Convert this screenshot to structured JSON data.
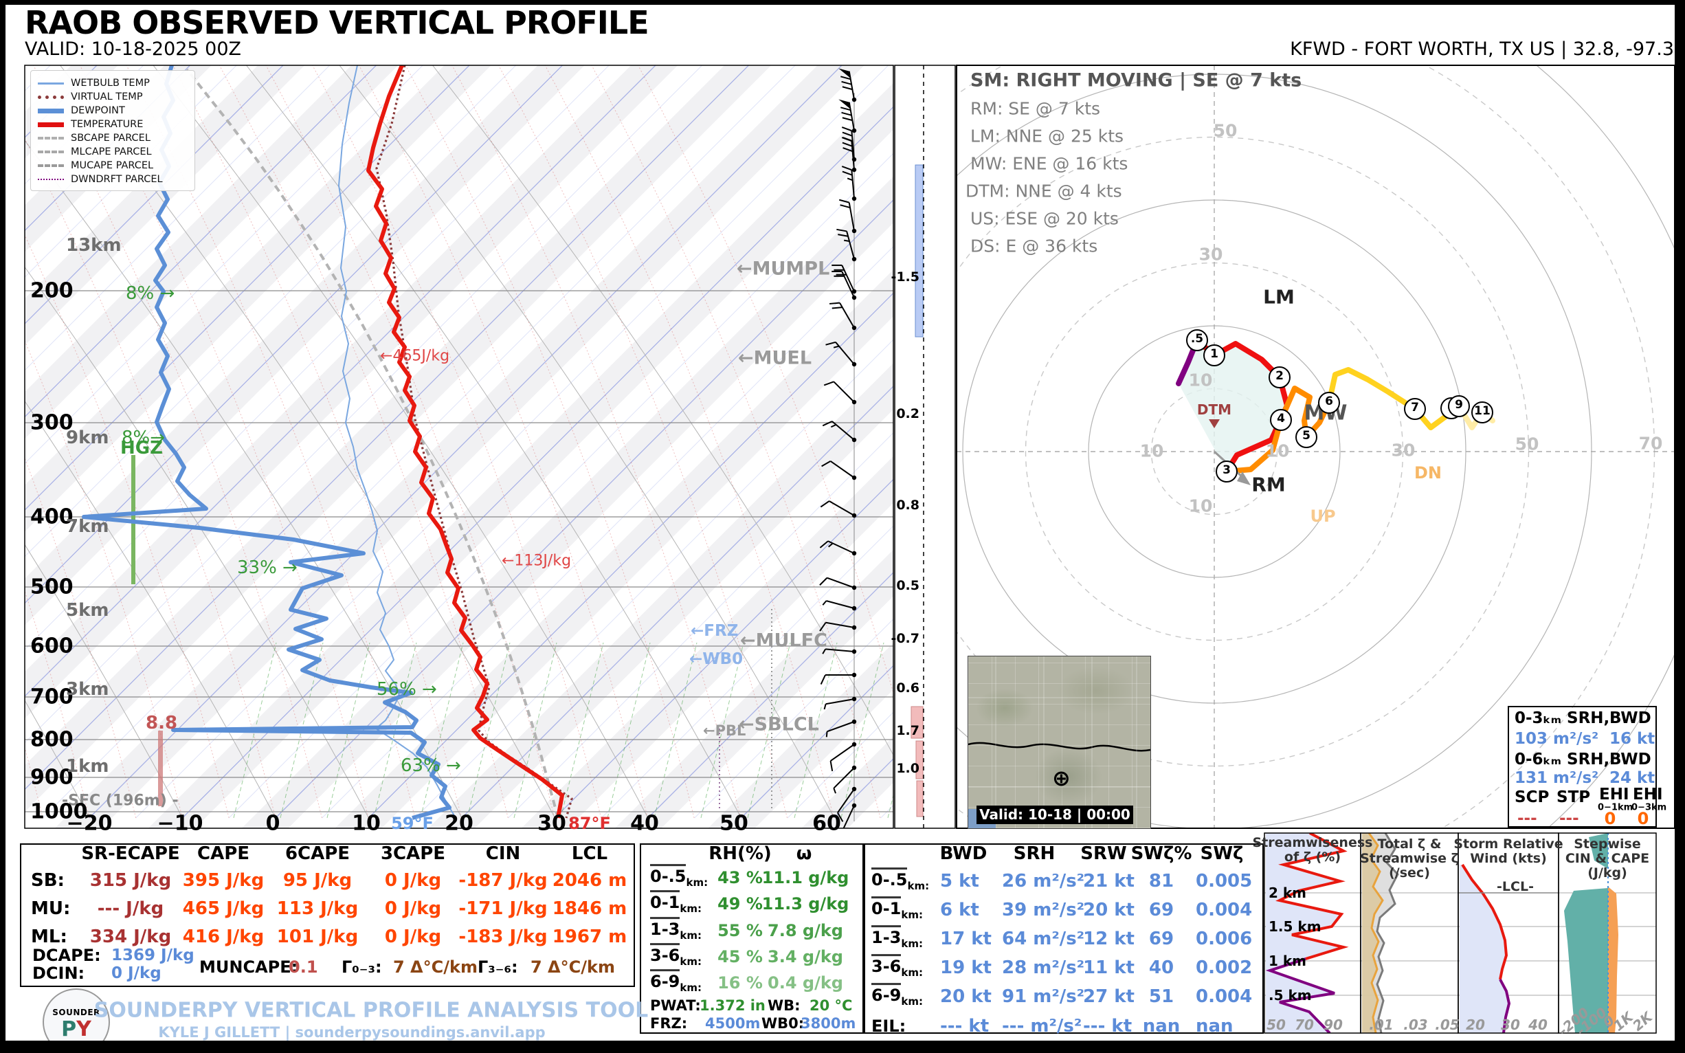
{
  "header": {
    "title": "RAOB OBSERVED VERTICAL PROFILE",
    "valid": "VALID: 10-18-2025 00Z",
    "station": "KFWD - FORT WORTH, TX US | 32.8, -97.3"
  },
  "legend": {
    "items": [
      "WETBULB TEMP",
      "VIRTUAL TEMP",
      "DEWPOINT",
      "TEMPERATURE",
      "SBCAPE PARCEL",
      "MLCAPE PARCEL",
      "MUCAPE PARCEL",
      "DWNDRFT PARCEL"
    ]
  },
  "skewt": {
    "pressure_ticks": [
      "200",
      "300",
      "400",
      "500",
      "600",
      "700",
      "800",
      "900",
      "1000"
    ],
    "km_labels": [
      "13km",
      "9km",
      "7km",
      "5km",
      "3km",
      "1km"
    ],
    "temp_ticks": [
      "−20",
      "−10",
      "0",
      "10",
      "20",
      "30",
      "40",
      "50",
      "60"
    ],
    "sfc_dew": "59°F",
    "sfc_temp": "87°F",
    "ann": {
      "rh200": "8% →",
      "rh300": "8%→",
      "hgz": "HGZ",
      "rh500": "33% →",
      "rh700": "56% →",
      "rh800": "63% →",
      "j465": "←465J/kg",
      "j113": "←113J/kg",
      "mumpl": "←MUMPL",
      "muel": "←MUEL",
      "mulfc": "←MULFC",
      "frz": "←FRZ",
      "wb0": "←WB0",
      "sblcl": "←SBLCL",
      "pbl": "←PBL",
      "hail": "8.8",
      "sfc": "-SFC (196m) -"
    }
  },
  "omega": {
    "values": [
      "-1.5",
      "0.2",
      "0.8",
      "0.5",
      "-0.7",
      "0.6",
      "1.7",
      "1.0"
    ]
  },
  "hodograph": {
    "sm_lines": [
      "SM: RIGHT MOVING | SE @ 7 kts",
      "RM: SE @ 7 kts",
      "LM: NNE @ 25 kts",
      "MW: ENE @ 16 kts",
      "DTM: NNE @ 4 kts",
      "US: ESE @ 20 kts",
      "DS: E @ 36 kts"
    ],
    "ring_ticks": [
      "10",
      "30",
      "50",
      "70"
    ],
    "markers": [
      ".5",
      "1",
      "2",
      "3",
      "4",
      "5",
      "6",
      "7",
      "8",
      "9",
      "11"
    ],
    "labels": {
      "lm": "LM",
      "mw": "MW",
      "rm": "RM",
      "up": "UP",
      "dn": "DN",
      "dtm": "DTM"
    },
    "inset": {
      "h1a": "0-3ₖₘ SRH,",
      "h1b": "BWD",
      "v1a": "103 m²/s²",
      "v1b": "16 kt",
      "h2a": "0-6ₖₘ SRH,",
      "h2b": "BWD",
      "v2a": "131 m²/s²",
      "v2b": "24 kt",
      "scp_h": "SCP",
      "stp_h": "STP",
      "ehi1_h": "EHI",
      "ehi1_s": "0−1km",
      "ehi3_h": "EHI",
      "ehi3_s": "0−3km",
      "scp": "---",
      "stp": "---",
      "ehi1": "0",
      "ehi3": "0"
    },
    "map_valid": "Valid: 10-18 | 00:00"
  },
  "thermo_table": {
    "headers": [
      "SR-ECAPE",
      "CAPE",
      "6CAPE",
      "3CAPE",
      "CIN",
      "LCL"
    ],
    "rows": [
      {
        "label": "SB:",
        "v0": "315 J/kg",
        "v1": "395 J/kg",
        "v2": "95 J/kg",
        "v3": "0 J/kg",
        "v4": "-187 J/kg",
        "v5": "2046 m"
      },
      {
        "label": "MU:",
        "v0": "--- J/kg",
        "v1": "465 J/kg",
        "v2": "113 J/kg",
        "v3": "0 J/kg",
        "v4": "-171 J/kg",
        "v5": "1846 m"
      },
      {
        "label": "ML:",
        "v0": "334 J/kg",
        "v1": "416 J/kg",
        "v2": "101 J/kg",
        "v3": "0 J/kg",
        "v4": "-183 J/kg",
        "v5": "1967 m"
      }
    ],
    "dcape_label": "DCAPE:",
    "dcape": "1369 J/kg",
    "dcin_label": "DCIN:",
    "dcin": "0 J/kg",
    "muncape_label": "MUNCAPE:",
    "muncape": "0.1",
    "lr03_label": "Γ₀₋₃:",
    "lr03": "7 Δ°C/km",
    "lr36_label": "Γ₃₋₆:",
    "lr36": "7 Δ°C/km"
  },
  "rh_table": {
    "h_rh": "RH(%)",
    "h_w": "ω",
    "rows": [
      {
        "range": "0-.5",
        "unit": "km:",
        "rh": "43 %",
        "w": "11.1 g/kg"
      },
      {
        "range": "0-1",
        "unit": "km:",
        "rh": "49 %",
        "w": "11.3 g/kg"
      },
      {
        "range": "1-3",
        "unit": "km:",
        "rh": "55 %",
        "w": "7.8 g/kg"
      },
      {
        "range": "3-6",
        "unit": "km:",
        "rh": "45 %",
        "w": "3.4 g/kg"
      },
      {
        "range": "6-9",
        "unit": "km:",
        "rh": "16 %",
        "w": "0.4 g/kg"
      }
    ],
    "pwat_label": "PWAT:",
    "pwat": "1.372 in",
    "wb_label": "WB:",
    "wb": "20 °C",
    "frz_label": "FRZ:",
    "frz": "4500m",
    "wb0_label": "WB0:",
    "wb0": "3800m"
  },
  "kin_table": {
    "headers": [
      "BWD",
      "SRH",
      "SRW",
      "SWζ%",
      "SWζ"
    ],
    "rows": [
      {
        "range": "0-.5",
        "unit": "km:",
        "bwd": "5 kt",
        "srh": "26 m²/s²",
        "srw": "21 kt",
        "swzp": "81",
        "swz": "0.005"
      },
      {
        "range": "0-1",
        "unit": "km:",
        "bwd": "6 kt",
        "srh": "39 m²/s²",
        "srw": "20 kt",
        "swzp": "69",
        "swz": "0.004"
      },
      {
        "range": "1-3",
        "unit": "km:",
        "bwd": "17 kt",
        "srh": "64 m²/s²",
        "srw": "12 kt",
        "swzp": "69",
        "swz": "0.006"
      },
      {
        "range": "3-6",
        "unit": "km:",
        "bwd": "19 kt",
        "srh": "28 m²/s²",
        "srw": "11 kt",
        "swzp": "40",
        "swz": "0.002"
      },
      {
        "range": "6-9",
        "unit": "km:",
        "bwd": "20 kt",
        "srh": "91 m²/s²",
        "srw": "27 kt",
        "swzp": "51",
        "swz": "0.004"
      }
    ],
    "eil_label": "EIL:",
    "eil": {
      "bwd": "--- kt",
      "srh": "--- m²/s²",
      "srw": "--- kt",
      "swzp": "nan",
      "swz": "nan"
    }
  },
  "panels": {
    "streamwise": {
      "t1": "Streamwiseness",
      "t2": "of ζ (%)",
      "yticks": [
        "2 km",
        "1.5 km",
        "1 km",
        ".5 km"
      ],
      "xticks": [
        "50",
        "70",
        "90"
      ]
    },
    "totalzeta": {
      "t1": "Total ζ &",
      "t2": "Streamwise ζ",
      "t3": "(/sec)",
      "xticks": [
        ".01",
        ".03",
        ".05"
      ]
    },
    "srw": {
      "t1": "Storm Relative",
      "t2": "Wind (kts)",
      "lcl": "-LCL-",
      "xticks": [
        "20",
        "30",
        "40"
      ]
    },
    "stepwise": {
      "t1": "Stepwise",
      "t2": "CIN & CAPE",
      "t3": "(J/kg)",
      "xticks": [
        "-200",
        "-100",
        "0",
        "1K",
        "2K"
      ]
    }
  },
  "footer": {
    "line1": "SOUNDERPY VERTICAL PROFILE ANALYSIS TOOL",
    "line2": "KYLE J GILLETT | sounderpysoundings.anvil.app",
    "logo1": "SOUNDER",
    "logo_p": "P",
    "logo_y": "Y"
  },
  "chart_data": {
    "type": [
      "skew-t",
      "hodograph",
      "table"
    ],
    "skewt": {
      "pressure_axis_hPa": [
        200,
        300,
        400,
        500,
        600,
        700,
        800,
        900,
        1000
      ],
      "temp_axis_C": [
        -20,
        -10,
        0,
        10,
        20,
        30,
        40,
        50,
        60
      ],
      "height_labels_km": [
        13,
        9,
        7,
        5,
        3,
        1
      ],
      "surface_temp_F": 87,
      "surface_dewpoint_F": 59,
      "surface_elevation_m": 196,
      "layer_rh_pct": {
        "200hPa": 8,
        "300hPa": 8,
        "500hPa": 33,
        "700hPa": 56,
        "800hPa": 63
      },
      "cape_segment_labels_Jkg": [
        465,
        113
      ],
      "hail_parameter": 8.8
    },
    "omega_profile": [
      -1.5,
      0.2,
      0.8,
      0.5,
      -0.7,
      0.6,
      1.7,
      1.0
    ],
    "thermo": {
      "SB": {
        "sr_ecape_Jkg": 315,
        "cape_Jkg": 395,
        "cape6_Jkg": 95,
        "cape3_Jkg": 0,
        "cin_Jkg": -187,
        "lcl_m": 2046
      },
      "MU": {
        "sr_ecape_Jkg": null,
        "cape_Jkg": 465,
        "cape6_Jkg": 113,
        "cape3_Jkg": 0,
        "cin_Jkg": -171,
        "lcl_m": 1846
      },
      "ML": {
        "sr_ecape_Jkg": 334,
        "cape_Jkg": 416,
        "cape6_Jkg": 101,
        "cape3_Jkg": 0,
        "cin_Jkg": -183,
        "lcl_m": 1967
      },
      "dcape_Jkg": 1369,
      "dcin_Jkg": 0,
      "muncape": 0.1,
      "lapse_0_3_Ckm": 7,
      "lapse_3_6_Ckm": 7,
      "pwat_in": 1.372,
      "wetbulb_C": 20,
      "frz_m": 4500,
      "wb0_m": 3800
    },
    "moisture": {
      "layers": [
        "0-0.5km",
        "0-1km",
        "1-3km",
        "3-6km",
        "6-9km"
      ],
      "rh_pct": [
        43,
        49,
        55,
        45,
        16
      ],
      "mixing_ratio_gkg": [
        11.1,
        11.3,
        7.8,
        3.4,
        0.4
      ]
    },
    "kinematics": {
      "layers": [
        "0-0.5km",
        "0-1km",
        "1-3km",
        "3-6km",
        "6-9km",
        "EIL"
      ],
      "bwd_kt": [
        5,
        6,
        17,
        19,
        20,
        null
      ],
      "srh_m2s2": [
        26,
        39,
        64,
        28,
        91,
        null
      ],
      "srw_kt": [
        21,
        20,
        12,
        11,
        27,
        null
      ],
      "swz_pct": [
        81,
        69,
        69,
        40,
        51,
        null
      ],
      "swz": [
        0.005,
        0.004,
        0.006,
        0.002,
        0.004,
        null
      ]
    },
    "hodograph": {
      "ring_interval_kt": 10,
      "ring_labels_kt": [
        10,
        30,
        50,
        70
      ],
      "height_markers_km": [
        0.5,
        1,
        2,
        3,
        4,
        5,
        6,
        7,
        8,
        9,
        11
      ],
      "storm_motions": {
        "SM": "RIGHT MOVING | SE @ 7 kts",
        "RM": "SE @ 7 kts",
        "LM": "NNE @ 25 kts",
        "MW": "ENE @ 16 kts",
        "DTM": "NNE @ 4 kts",
        "US": "ESE @ 20 kts",
        "DS": "E @ 36 kts"
      },
      "srh_0_3_m2s2": 103,
      "bwd_0_3_kt": 16,
      "srh_0_6_m2s2": 131,
      "bwd_0_6_kt": 24,
      "scp": null,
      "stp": null,
      "ehi_0_1": 0,
      "ehi_0_3": 0
    }
  }
}
